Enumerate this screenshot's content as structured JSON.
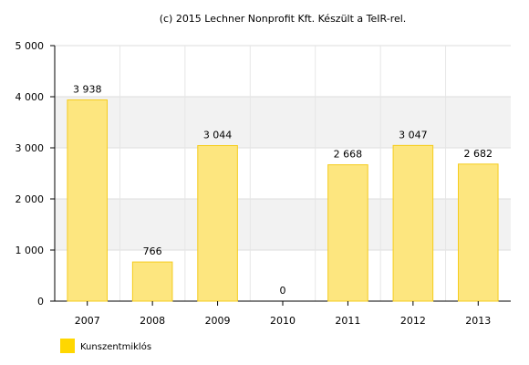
{
  "chart_data": {
    "type": "bar",
    "title": "(c) 2015 Lechner Nonprofit Kft. Készült a TeIR-rel.",
    "categories": [
      "2007",
      "2008",
      "2009",
      "2010",
      "2011",
      "2012",
      "2013"
    ],
    "series": [
      {
        "name": "Kunszentmiklós",
        "values": [
          3938,
          766,
          3044,
          0,
          2668,
          3047,
          2682
        ],
        "value_labels": [
          "3 938",
          "766",
          "3 044",
          "0",
          "2 668",
          "3 047",
          "2 682"
        ],
        "color": "#fde67f",
        "border_color": "#f5cc1d"
      }
    ],
    "ylim": [
      0,
      5000
    ],
    "yticks": [
      0,
      1000,
      2000,
      3000,
      4000,
      5000
    ],
    "ytick_labels": [
      "0",
      "1 000",
      "2 000",
      "3 000",
      "4 000",
      "5 000"
    ],
    "xlabel": "",
    "ylabel": "",
    "grid": true,
    "alternating_band_color": "#f2f2f2",
    "legend_position": "bottom-left",
    "legend_swatch_color": "#ffd700"
  }
}
